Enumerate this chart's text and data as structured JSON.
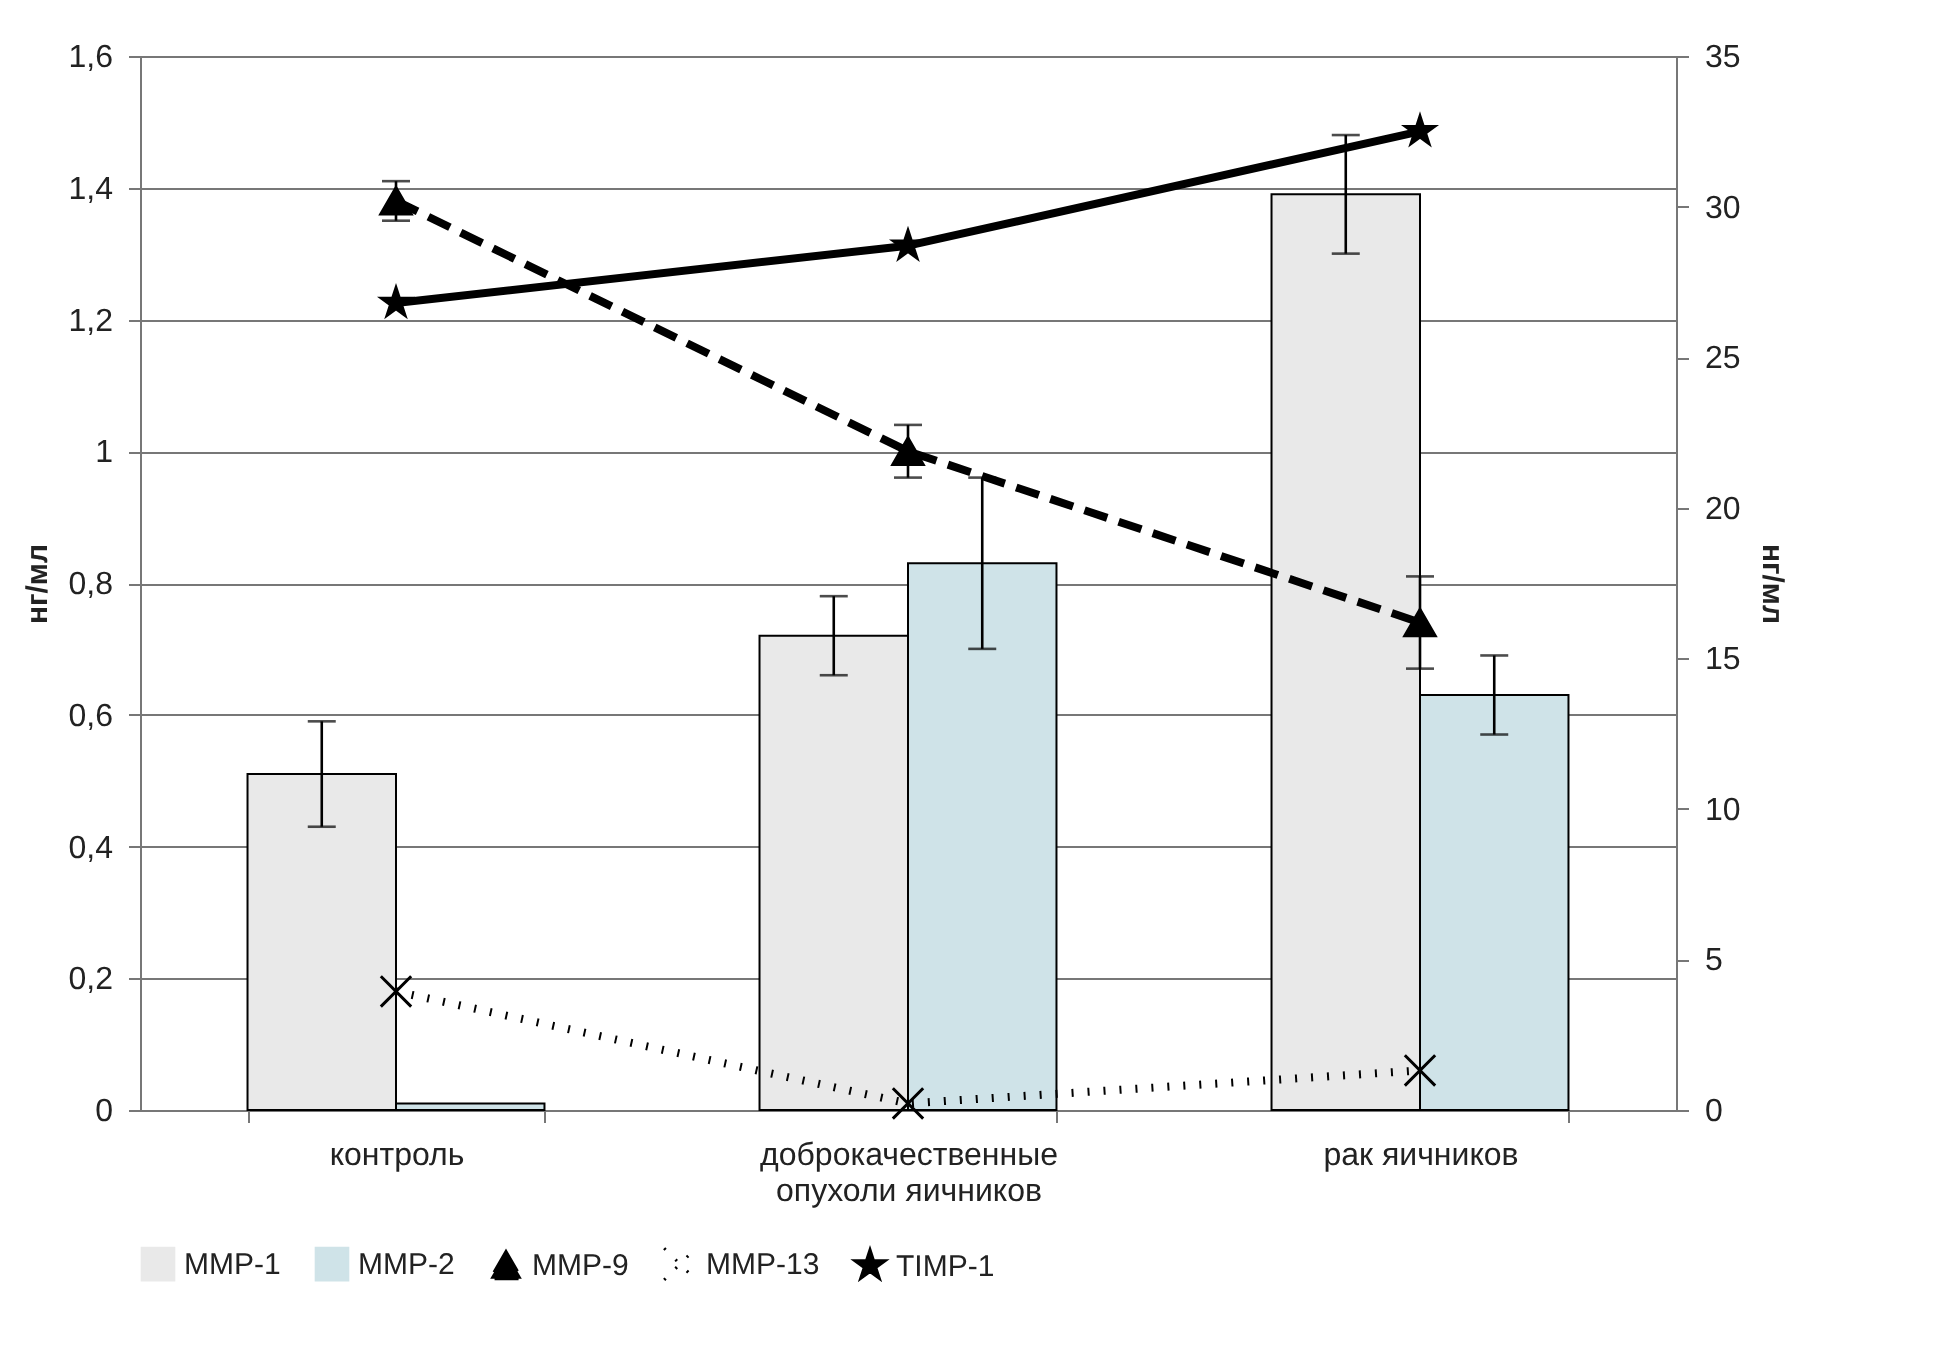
{
  "chart_data": {
    "type": "bar",
    "ylabel": "нг/мл",
    "y2label": "нг/мл",
    "categories": [
      "контроль",
      "доброкачественные опухоли яичников",
      "рак яичников"
    ],
    "series": [
      {
        "name": "MMP-1",
        "type": "bar",
        "color": "#e9e9e9",
        "values": [
          0.51,
          0.72,
          1.39
        ],
        "errors": [
          0.08,
          0.06,
          0.09
        ]
      },
      {
        "name": "MMP-2",
        "type": "bar",
        "color": "#cfe3e8",
        "values": [
          0.01,
          0.83,
          0.63
        ],
        "errors": [
          null,
          0.13,
          0.06
        ]
      },
      {
        "name": "MMP-9",
        "type": "line",
        "color": "#000000",
        "marker": "triangle",
        "line_style": "dashed",
        "values": [
          1.38,
          1.0,
          0.74
        ],
        "errors": [
          0.03,
          0.04,
          0.07
        ]
      },
      {
        "name": "MMP-13",
        "type": "line",
        "color": "#000000",
        "marker": "cross",
        "line_style": "dotted",
        "values": [
          0.18,
          0.01,
          0.06
        ]
      },
      {
        "name": "TIMP-1",
        "type": "line",
        "axis": "y2",
        "color": "#000000",
        "marker": "star",
        "line_style": "solid",
        "values": [
          26.8,
          28.7,
          32.5
        ]
      }
    ],
    "ylim": [
      0,
      1.6
    ],
    "yticks": [
      0,
      {
        "value": 0.2,
        "label": "0,2"
      },
      {
        "value": 0.4,
        "label": "0,4"
      },
      {
        "value": 0.6,
        "label": "0,6"
      },
      {
        "value": 0.8,
        "label": "0,8"
      },
      1,
      {
        "value": 1.2,
        "label": "1,2"
      },
      {
        "value": 1.4,
        "label": "1,4"
      },
      {
        "value": 1.6,
        "label": "1,6"
      }
    ],
    "y2lim": [
      0,
      35
    ],
    "y2ticks": [
      0,
      5,
      10,
      15,
      20,
      25,
      30,
      35
    ],
    "grid": "y",
    "legend": "bottom"
  }
}
